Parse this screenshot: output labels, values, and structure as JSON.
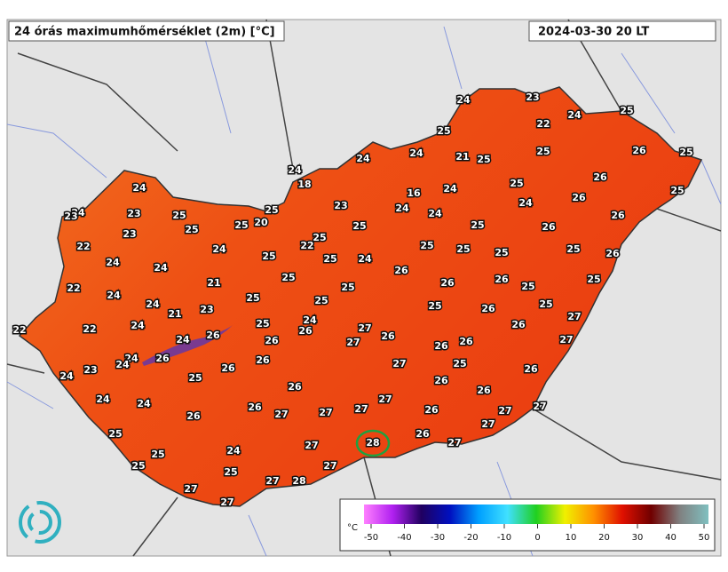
{
  "header": {
    "title": "24 órás maximumhőmérséklet (2m) [°C]",
    "date": "2024-03-30 20 LT"
  },
  "stations": [
    24,
    23,
    24,
    25,
    22,
    25,
    24,
    24,
    21,
    25,
    25,
    26,
    25,
    24,
    18,
    24,
    16,
    24,
    25,
    26,
    25,
    24,
    23,
    23,
    25,
    23,
    24,
    24,
    24,
    26,
    25,
    20,
    25,
    25,
    25,
    25,
    26,
    26,
    23,
    25,
    22,
    22,
    24,
    25,
    25,
    25,
    25,
    26,
    24,
    24,
    25,
    25,
    24,
    26,
    22,
    21,
    25,
    24,
    25,
    26,
    26,
    25,
    25,
    24,
    21,
    23,
    25,
    25,
    25,
    26,
    25,
    22,
    22,
    24,
    25,
    24,
    26,
    27,
    27,
    24,
    26,
    26,
    27,
    26,
    26,
    27,
    24,
    24,
    26,
    26,
    26,
    26,
    23,
    24,
    26,
    27,
    25,
    26,
    25,
    26,
    26,
    26,
    24,
    24,
    27,
    26,
    26,
    27,
    27,
    27,
    26,
    27,
    27,
    27,
    25,
    26,
    27,
    27,
    28,
    24,
    25,
    25,
    27,
    25,
    27,
    28,
    27,
    27
  ],
  "colorbar": {
    "unit": "°C",
    "ticks": [
      -50,
      -40,
      -30,
      -20,
      -10,
      0,
      10,
      20,
      30,
      40,
      50
    ],
    "colors": [
      "#ff80ff",
      "#b020f0",
      "#200060",
      "#0010c0",
      "#00a0ff",
      "#40e0ff",
      "#20d020",
      "#f0f000",
      "#ff9000",
      "#e01000",
      "#700000",
      "#808080",
      "#80c0c0"
    ]
  }
}
